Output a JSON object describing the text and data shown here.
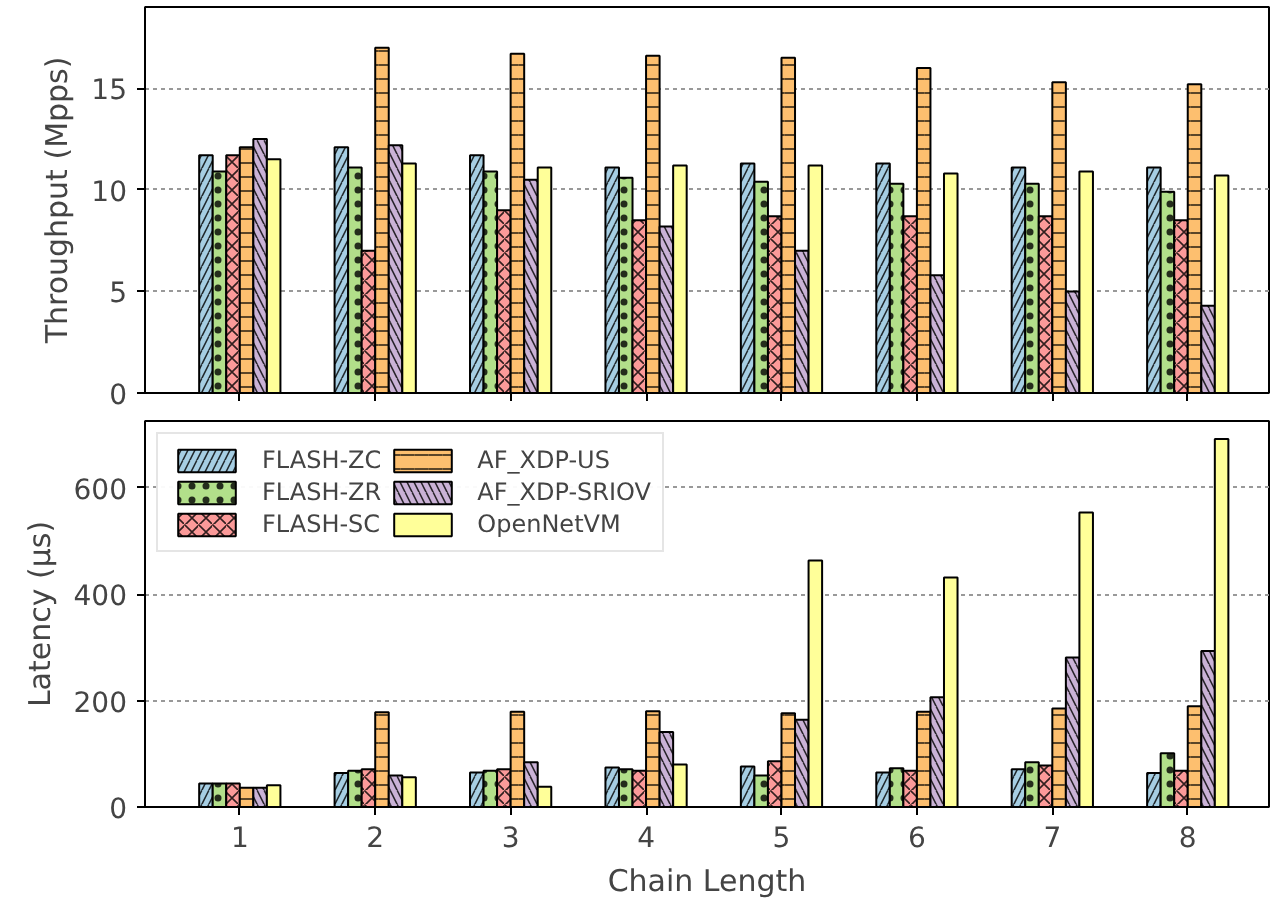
{
  "chart_data": [
    {
      "type": "bar",
      "ylabel": "Throughput (Mpps)",
      "categories": [
        "1",
        "2",
        "3",
        "4",
        "5",
        "6",
        "7",
        "8"
      ],
      "ylim": [
        0,
        19
      ],
      "yticks": [
        0,
        5,
        10,
        15
      ],
      "grid": "y",
      "tick_labels": "y",
      "series": [
        {
          "color": "#a6cee3",
          "values": [
            11.7,
            12.1,
            11.7,
            11.1,
            11.3,
            11.3,
            11.1,
            11.1
          ]
        },
        {
          "color": "#b2df8a",
          "values": [
            10.9,
            11.1,
            10.9,
            10.6,
            10.4,
            10.3,
            10.3,
            9.9
          ]
        },
        {
          "color": "#fb9a99",
          "values": [
            11.7,
            7.0,
            9.0,
            8.5,
            8.7,
            8.7,
            8.7,
            8.5
          ]
        },
        {
          "color": "#fdbf6f",
          "values": [
            12.1,
            17.0,
            16.7,
            16.6,
            16.5,
            16.0,
            15.3,
            15.2
          ]
        },
        {
          "color": "#cab2d6",
          "values": [
            12.5,
            12.2,
            10.5,
            8.2,
            7.0,
            5.8,
            5.0,
            4.3
          ]
        },
        {
          "color": "#ffff99",
          "values": [
            11.5,
            11.3,
            11.1,
            11.2,
            11.2,
            10.8,
            10.9,
            10.7
          ]
        }
      ]
    },
    {
      "type": "bar",
      "xlabel": "Chain Length",
      "ylabel": "Latency (µs)",
      "categories": [
        "1",
        "2",
        "3",
        "4",
        "5",
        "6",
        "7",
        "8"
      ],
      "ylim": [
        0,
        725
      ],
      "yticks": [
        0,
        200,
        400,
        600
      ],
      "grid": "y",
      "legend": "top left",
      "series": [
        {
          "name": "FLASH-ZC",
          "color": "#a6cee3",
          "values": [
            44,
            64,
            65,
            74,
            76,
            65,
            71,
            64
          ]
        },
        {
          "name": "FLASH-ZR",
          "color": "#b2df8a",
          "values": [
            44,
            68,
            68,
            71,
            59,
            73,
            84,
            101
          ]
        },
        {
          "name": "FLASH-SC",
          "color": "#fb9a99",
          "values": [
            44,
            71,
            71,
            68,
            86,
            68,
            78,
            68
          ]
        },
        {
          "name": "AF_XDP-US",
          "color": "#fdbf6f",
          "values": [
            36,
            178,
            179,
            180,
            176,
            179,
            185,
            189
          ]
        },
        {
          "name": "AF_XDP-SRIOV",
          "color": "#cab2d6",
          "values": [
            36,
            59,
            84,
            141,
            164,
            206,
            281,
            293
          ]
        },
        {
          "name": "OpenNetVM",
          "color": "#ffff99",
          "values": [
            41,
            56,
            38,
            80,
            463,
            431,
            553,
            691
          ]
        }
      ]
    }
  ]
}
